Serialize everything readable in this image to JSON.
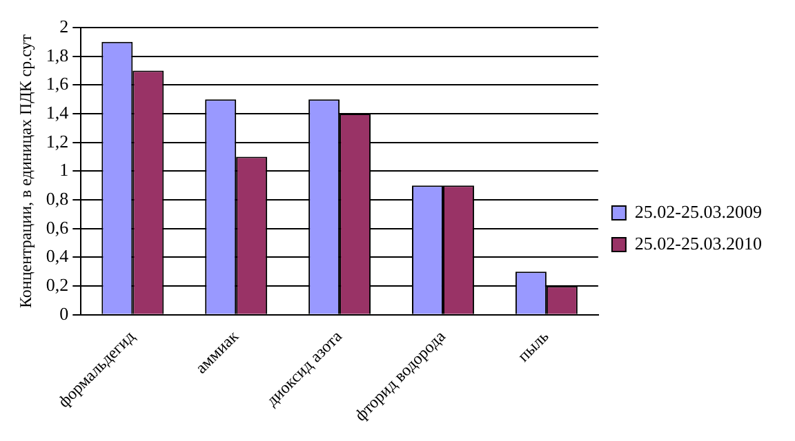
{
  "chart_data": {
    "type": "bar",
    "ylabel": "Концентрации, в единицах ПДК ср.сут",
    "categories": [
      "формальдегид",
      "аммиак",
      "диоксид азота",
      "фторид водорода",
      "пыль"
    ],
    "series": [
      {
        "name": "25.02-25.03.2009",
        "color": "#9999ff",
        "values": [
          1.9,
          1.5,
          1.5,
          0.9,
          0.3
        ]
      },
      {
        "name": "25.02-25.03.2010",
        "color": "#993366",
        "values": [
          1.7,
          1.1,
          1.4,
          0.9,
          0.2
        ]
      }
    ],
    "ylim": [
      0,
      2
    ],
    "yticks": [
      0,
      {
        "value": 0.2,
        "label": "0,2"
      },
      {
        "value": 0.4,
        "label": "0,4"
      },
      {
        "value": 0.6,
        "label": "0,6"
      },
      {
        "value": 0.8,
        "label": "0,8"
      },
      1,
      {
        "value": 1.2,
        "label": "1,2"
      },
      {
        "value": 1.4,
        "label": "1,4"
      },
      {
        "value": 1.6,
        "label": "1,6"
      },
      {
        "value": 1.8,
        "label": "1,8"
      },
      2
    ],
    "grid": "y",
    "legend": "right"
  }
}
